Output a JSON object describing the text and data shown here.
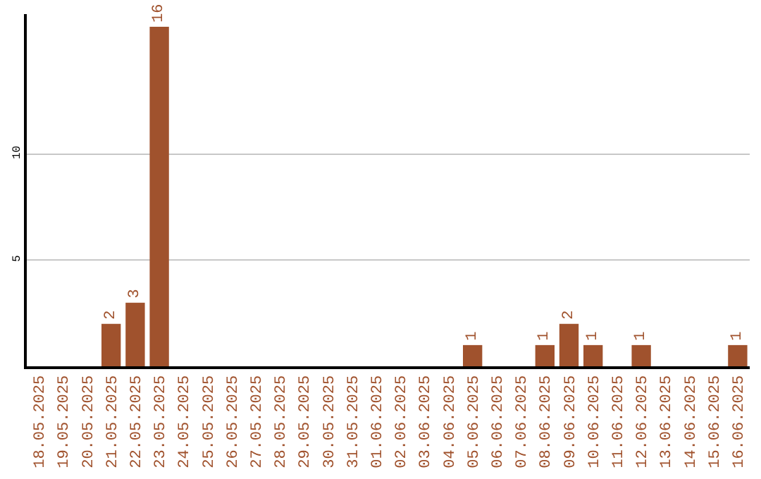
{
  "chart_data": {
    "type": "bar",
    "categories": [
      "18.05.2025",
      "19.05.2025",
      "20.05.2025",
      "21.05.2025",
      "22.05.2025",
      "23.05.2025",
      "24.05.2025",
      "25.05.2025",
      "26.05.2025",
      "27.05.2025",
      "28.05.2025",
      "29.05.2025",
      "30.05.2025",
      "31.05.2025",
      "01.06.2025",
      "02.06.2025",
      "03.06.2025",
      "04.06.2025",
      "05.06.2025",
      "06.06.2025",
      "07.06.2025",
      "08.06.2025",
      "09.06.2025",
      "10.06.2025",
      "11.06.2025",
      "12.06.2025",
      "13.06.2025",
      "14.06.2025",
      "15.06.2025",
      "16.06.2025"
    ],
    "values": [
      0,
      0,
      0,
      2,
      3,
      16,
      0,
      0,
      0,
      0,
      0,
      0,
      0,
      0,
      0,
      0,
      0,
      0,
      1,
      0,
      0,
      1,
      2,
      1,
      0,
      1,
      0,
      0,
      0,
      1
    ],
    "value_labels": [
      null,
      null,
      null,
      "2",
      "3",
      "16",
      null,
      null,
      null,
      null,
      null,
      null,
      null,
      null,
      null,
      null,
      null,
      null,
      "1",
      null,
      null,
      "1",
      "2",
      "1",
      null,
      "1",
      null,
      null,
      null,
      "1"
    ],
    "color": "#a0522d",
    "ylim": [
      0,
      16.6
    ],
    "yticks": [
      5,
      10
    ],
    "grid": "y",
    "legend": false
  }
}
